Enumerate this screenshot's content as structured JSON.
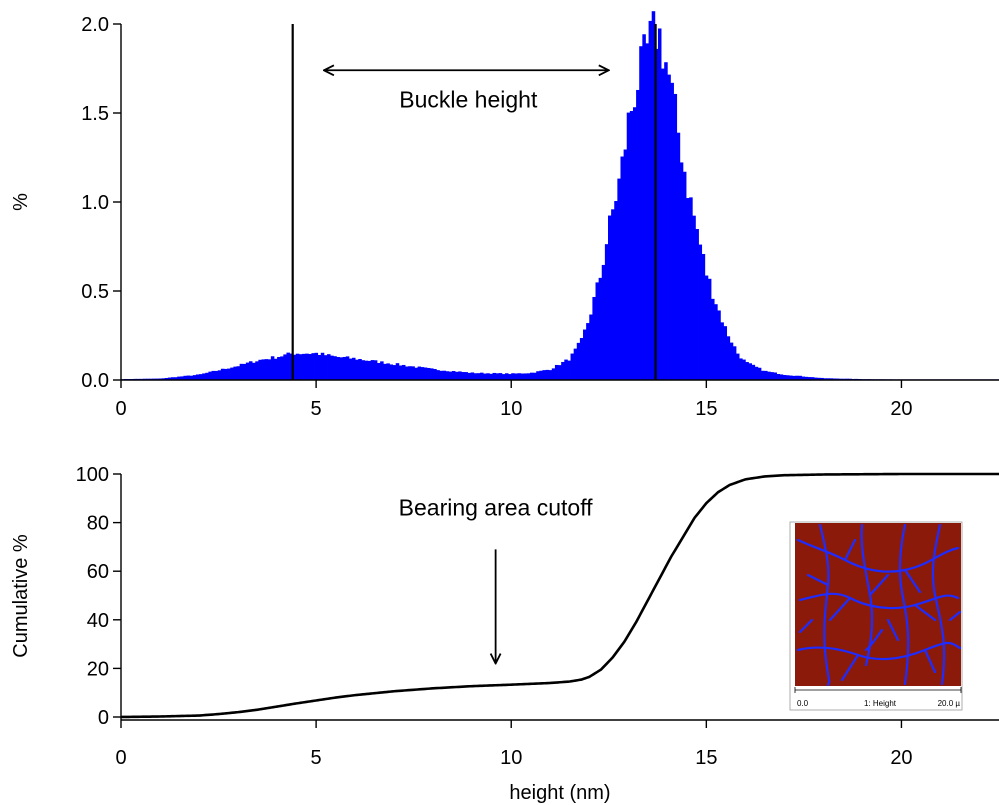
{
  "chart_data": [
    {
      "type": "bar",
      "panel": "top",
      "xlabel": "",
      "ylabel": "%",
      "xlim": [
        0,
        22.5
      ],
      "ylim": [
        0,
        2.0
      ],
      "x_ticks": [
        0,
        5,
        10,
        15,
        20
      ],
      "y_ticks": [
        0.0,
        0.5,
        1.0,
        1.5,
        2.0
      ],
      "y_tick_labels": [
        "0.0",
        "0.5",
        "1.0",
        "1.5",
        "2.0"
      ],
      "bar_color": "#0000ff",
      "bin_width": 0.08,
      "profile_x": [
        0,
        1.0,
        2.0,
        3.0,
        3.5,
        4.0,
        4.4,
        5.0,
        5.5,
        6.0,
        7.0,
        8.0,
        9.0,
        10.0,
        10.5,
        11.0,
        11.5,
        11.8,
        12.0,
        12.3,
        12.5,
        12.8,
        13.0,
        13.2,
        13.4,
        13.6,
        13.7,
        13.8,
        14.0,
        14.2,
        14.5,
        14.8,
        15.0,
        15.3,
        15.5,
        15.8,
        16.0,
        16.5,
        17.0,
        17.5,
        18.0,
        19.0,
        20.0,
        22.5
      ],
      "profile_y": [
        0.005,
        0.008,
        0.03,
        0.08,
        0.11,
        0.13,
        0.15,
        0.15,
        0.13,
        0.12,
        0.09,
        0.06,
        0.04,
        0.035,
        0.04,
        0.06,
        0.12,
        0.22,
        0.35,
        0.6,
        0.85,
        1.15,
        1.45,
        1.65,
        1.8,
        1.93,
        1.96,
        1.93,
        1.75,
        1.5,
        1.1,
        0.8,
        0.6,
        0.4,
        0.28,
        0.15,
        0.1,
        0.05,
        0.03,
        0.02,
        0.01,
        0.005,
        0.003,
        0.002
      ],
      "vertical_lines": [
        4.4,
        13.7
      ],
      "annotations": [
        {
          "text": "Buckle height",
          "x": 8.9,
          "y": 1.53
        },
        {
          "type": "double-arrow",
          "x_start": 5.2,
          "x_end": 12.5,
          "y": 1.74
        }
      ]
    },
    {
      "type": "line",
      "panel": "bottom",
      "xlabel": "height (nm)",
      "ylabel": "Cumulative %",
      "xlim": [
        0,
        22.5
      ],
      "ylim": [
        0,
        100
      ],
      "x_ticks": [
        0,
        5,
        10,
        15,
        20
      ],
      "y_ticks": [
        0,
        20,
        40,
        60,
        80,
        100
      ],
      "line_color": "#000000",
      "x": [
        0,
        1,
        2,
        2.5,
        3,
        3.5,
        4,
        4.5,
        5,
        5.5,
        6,
        7,
        8,
        9,
        10,
        11,
        11.5,
        11.8,
        12,
        12.3,
        12.6,
        12.9,
        13.2,
        13.5,
        13.8,
        14.1,
        14.4,
        14.7,
        15,
        15.3,
        15.6,
        16,
        16.5,
        17,
        18,
        19,
        20,
        22.5
      ],
      "y": [
        0,
        0.2,
        0.6,
        1.2,
        2,
        3,
        4.3,
        5.6,
        6.8,
        8,
        9,
        10.6,
        11.8,
        12.7,
        13.3,
        14,
        14.6,
        15.4,
        16.5,
        19.5,
        24.5,
        31,
        39,
        48,
        57,
        66,
        74,
        82,
        88,
        92.5,
        95.5,
        97.8,
        99,
        99.5,
        99.8,
        99.9,
        100,
        100
      ],
      "annotations": [
        {
          "text": "Bearing area cutoff",
          "x": 9.6,
          "y": 83
        },
        {
          "type": "arrow",
          "x": 9.6,
          "y_start": 69,
          "y_end": 22
        }
      ],
      "inset": {
        "description_colors": {
          "background": "#8b1a0a",
          "features": "#1e2cff"
        },
        "scale_left": "0.0",
        "scale_center": "1: Height",
        "scale_right": "20.0 µ"
      }
    }
  ]
}
